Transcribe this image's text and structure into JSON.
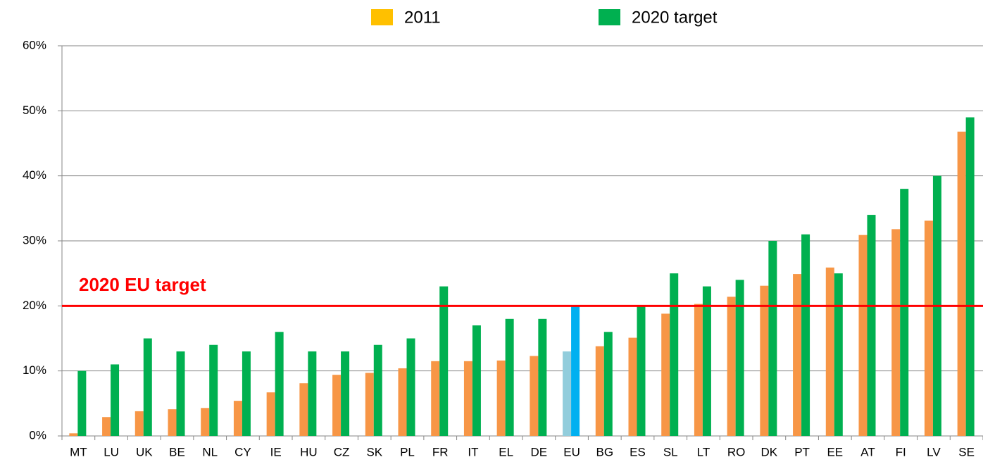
{
  "chart_data": {
    "type": "bar",
    "categories": [
      "MT",
      "LU",
      "UK",
      "BE",
      "NL",
      "CY",
      "IE",
      "HU",
      "CZ",
      "SK",
      "PL",
      "FR",
      "IT",
      "EL",
      "DE",
      "EU",
      "BG",
      "ES",
      "SL",
      "LT",
      "RO",
      "DK",
      "PT",
      "EE",
      "AT",
      "FI",
      "LV",
      "SE"
    ],
    "series": [
      {
        "name": "2011",
        "color": "#f79646",
        "legend_color": "#ffc000",
        "point_colors": {
          "15": "#92cddc"
        },
        "values": [
          0.4,
          2.9,
          3.8,
          4.1,
          4.3,
          5.4,
          6.7,
          8.1,
          9.4,
          9.7,
          10.4,
          11.5,
          11.5,
          11.6,
          12.3,
          13,
          13.8,
          15.1,
          18.8,
          20.3,
          21.4,
          23.1,
          24.9,
          25.9,
          30.9,
          31.8,
          33.1,
          46.8
        ]
      },
      {
        "name": "2020 target",
        "color": "#00b050",
        "legend_color": "#00b050",
        "point_colors": {
          "15": "#00b0f0"
        },
        "values": [
          10,
          11,
          15,
          13,
          14,
          13,
          16,
          13,
          13,
          14,
          15,
          23,
          17,
          18,
          18,
          20,
          16,
          20,
          25,
          23,
          24,
          30,
          31,
          25,
          34,
          38,
          40,
          49
        ]
      }
    ],
    "annotations": [
      {
        "text": "2020 EU target",
        "value": 20,
        "color": "#ff0000"
      }
    ],
    "ylim": [
      0,
      60
    ],
    "yticks": [
      {
        "value": 0,
        "label": "0%"
      },
      {
        "value": 10,
        "label": "10%"
      },
      {
        "value": 20,
        "label": "20%"
      },
      {
        "value": 30,
        "label": "30%"
      },
      {
        "value": 40,
        "label": "40%"
      },
      {
        "value": 50,
        "label": "50%"
      },
      {
        "value": 60,
        "label": "60%"
      }
    ],
    "grid": true
  }
}
